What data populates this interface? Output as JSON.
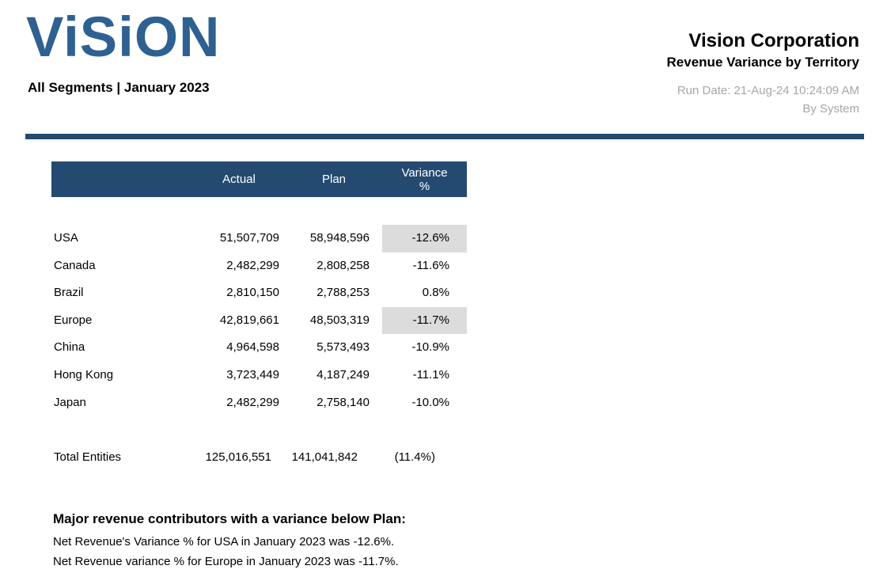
{
  "logo": {
    "text": "ViSiON",
    "subtitle": "All Segments | January 2023",
    "color": "#2e6191"
  },
  "header": {
    "title": "Vision Corporation",
    "subtitle": "Revenue Variance by Territory",
    "run_date": "Run Date: 21-Aug-24 10:24:09 AM",
    "run_by": "By System"
  },
  "colors": {
    "navy_header": "#254a72",
    "divider": "#254a72",
    "logo_blue": "#2e6191",
    "muted_text": "#a6a6a6",
    "variance_highlight": "#dcdcdc"
  },
  "table": {
    "columns": [
      "",
      "Actual",
      "Plan",
      "Variance %"
    ],
    "rows": [
      {
        "territory": "USA",
        "actual": "51,507,709",
        "plan": "58,948,596",
        "variance": "-12.6%",
        "highlight": true
      },
      {
        "territory": "Canada",
        "actual": "2,482,299",
        "plan": "2,808,258",
        "variance": "-11.6%",
        "highlight": false
      },
      {
        "territory": "Brazil",
        "actual": "2,810,150",
        "plan": "2,788,253",
        "variance": "0.8%",
        "highlight": false
      },
      {
        "territory": "Europe",
        "actual": "42,819,661",
        "plan": "48,503,319",
        "variance": "-11.7%",
        "highlight": true
      },
      {
        "territory": "China",
        "actual": "4,964,598",
        "plan": "5,573,493",
        "variance": "-10.9%",
        "highlight": false
      },
      {
        "territory": "Hong Kong",
        "actual": "3,723,449",
        "plan": "4,187,249",
        "variance": "-11.1%",
        "highlight": false
      },
      {
        "territory": "Japan",
        "actual": "2,482,299",
        "plan": "2,758,140",
        "variance": "-10.0%",
        "highlight": false
      }
    ],
    "total": {
      "territory": "Total Entities",
      "actual": "125,016,551",
      "plan": "141,041,842",
      "variance": "(11.4%)"
    }
  },
  "footer": {
    "heading": "Major revenue contributors with a variance below Plan:",
    "lines": [
      "Net Revenue's Variance % for USA in January 2023 was -12.6%.",
      "Net Revenue variance % for Europe in January 2023 was -11.7%."
    ]
  }
}
